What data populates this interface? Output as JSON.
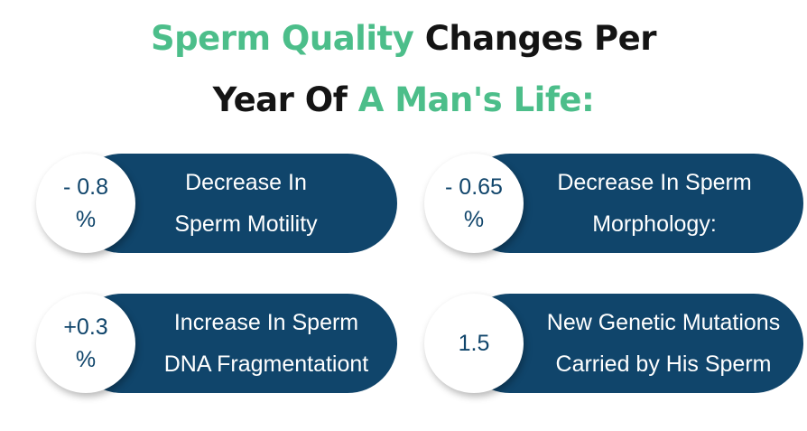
{
  "title": {
    "line1_green": "Sperm Quality",
    "line1_dark": "Changes Per",
    "line2_dark": "Year Of",
    "line2_green": "A Man's Life:"
  },
  "cards": [
    {
      "value_line1": "- 0.8",
      "value_line2": "%",
      "text_line1": "Decrease In",
      "text_line2": "Sperm Motility"
    },
    {
      "value_line1": "- 0.65",
      "value_line2": "%",
      "text_line1": "Decrease In Sperm",
      "text_line2": "Morphology:"
    },
    {
      "value_line1": "+0.3",
      "value_line2": "%",
      "text_line1": "Increase In Sperm",
      "text_line2": "DNA Fragmentationt"
    },
    {
      "value_line1": "1.5",
      "value_line2": "",
      "text_line1": "New Genetic Mutations",
      "text_line2": "Carried by His Sperm"
    }
  ],
  "colors": {
    "accent_green": "#4cbe8a",
    "pill_navy": "#10456b",
    "title_dark": "#141414"
  }
}
